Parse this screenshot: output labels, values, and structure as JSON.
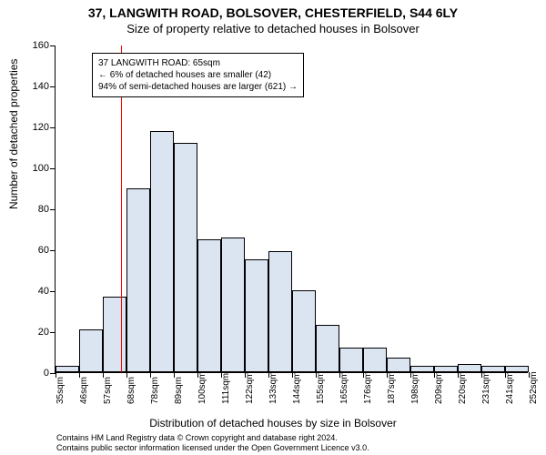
{
  "title": "37, LANGWITH ROAD, BOLSOVER, CHESTERFIELD, S44 6LY",
  "subtitle": "Size of property relative to detached houses in Bolsover",
  "y_axis_label": "Number of detached properties",
  "x_axis_label": "Distribution of detached houses by size in Bolsover",
  "attribution_line1": "Contains HM Land Registry data © Crown copyright and database right 2024.",
  "attribution_line2": "Contains public sector information licensed under the Open Government Licence v3.0.",
  "chart": {
    "type": "histogram",
    "ylim": [
      0,
      160
    ],
    "ytick_step": 20,
    "y_ticks": [
      0,
      20,
      40,
      60,
      80,
      100,
      120,
      140,
      160
    ],
    "x_tick_labels": [
      "35sqm",
      "46sqm",
      "57sqm",
      "68sqm",
      "78sqm",
      "89sqm",
      "100sqm",
      "111sqm",
      "122sqm",
      "133sqm",
      "144sqm",
      "155sqm",
      "165sqm",
      "176sqm",
      "187sqm",
      "198sqm",
      "209sqm",
      "220sqm",
      "231sqm",
      "241sqm",
      "252sqm"
    ],
    "bar_values": [
      3,
      21,
      37,
      90,
      118,
      112,
      65,
      66,
      55,
      59,
      40,
      23,
      12,
      12,
      7,
      3,
      3,
      4,
      3,
      3
    ],
    "bar_fill": "#dbe5f1",
    "bar_stroke": "#000000",
    "background_color": "#ffffff",
    "axis_color": "#000000",
    "reference_line": {
      "value_sqm": 65,
      "color": "#ff0000"
    },
    "annotation": {
      "line1": "37 LANGWITH ROAD: 65sqm",
      "line2": "← 6% of detached houses are smaller (42)",
      "line3": "94% of semi-detached houses are larger (621) →",
      "border_color": "#000000",
      "background": "#ffffff",
      "fontsize": 10
    },
    "title_fontsize": 14,
    "subtitle_fontsize": 13,
    "axis_label_fontsize": 12,
    "tick_fontsize": 11
  }
}
